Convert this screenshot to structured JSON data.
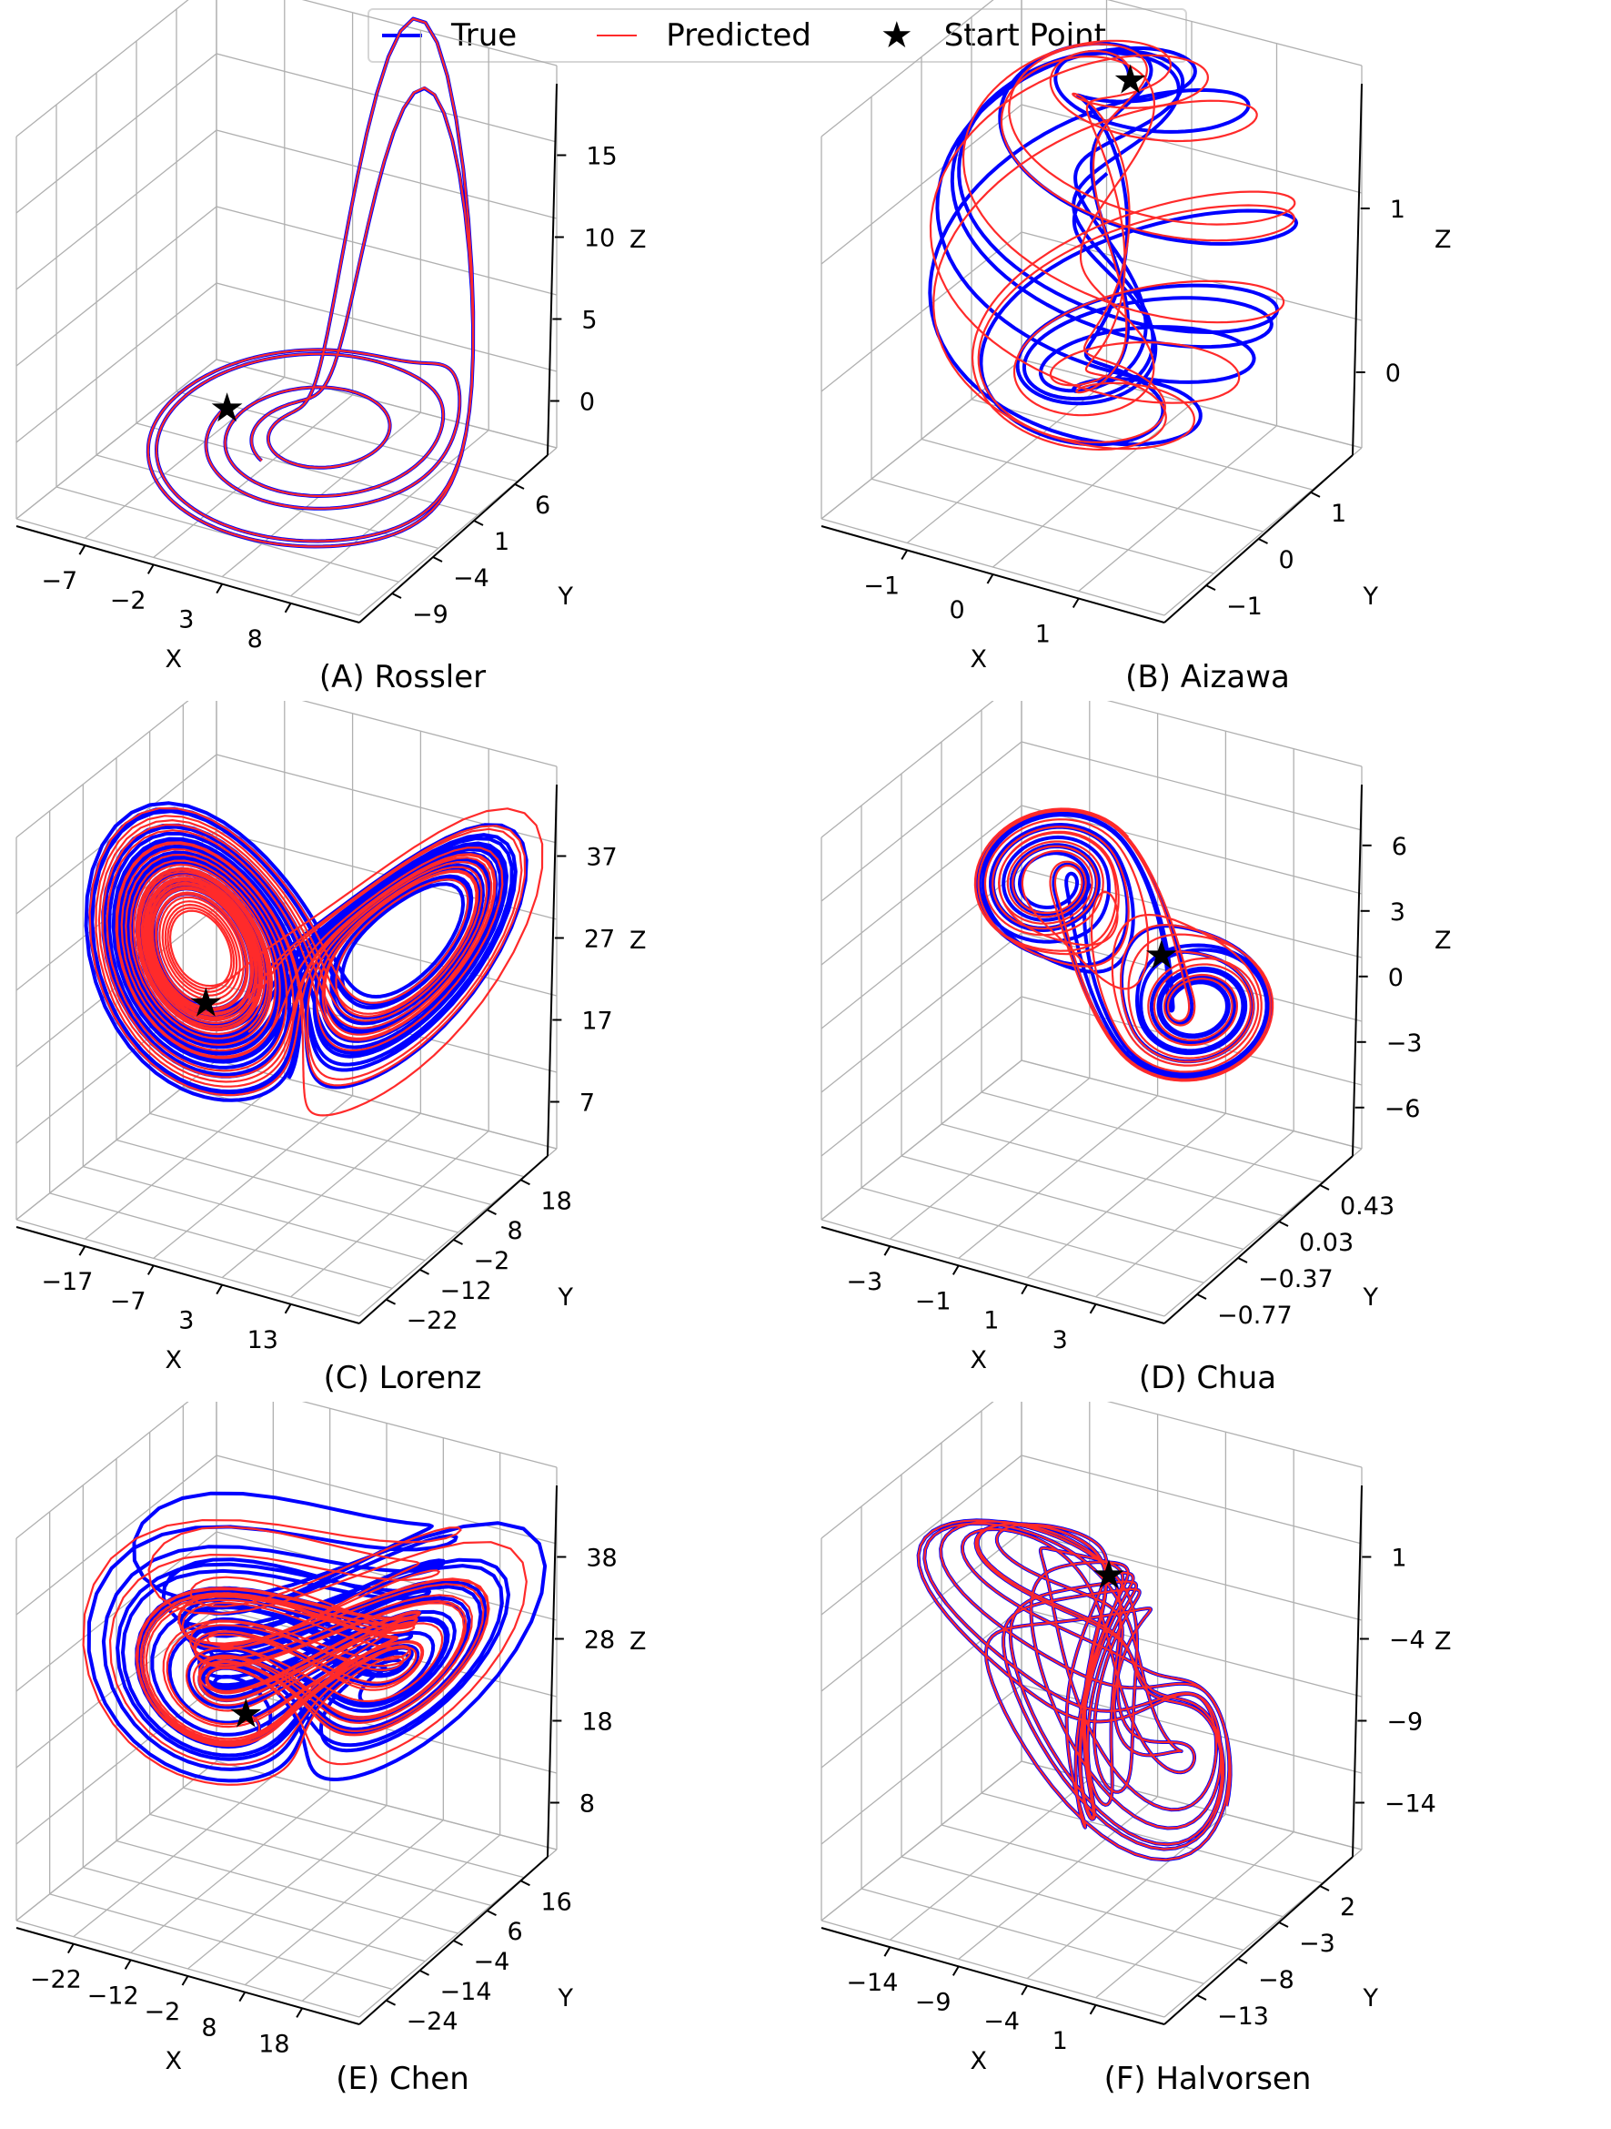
{
  "legend": {
    "entries": [
      {
        "label": "True",
        "color": "#0000ff",
        "marker": "line"
      },
      {
        "label": "Predicted",
        "color": "#ff2a2a",
        "marker": "line"
      },
      {
        "label": "Start Point",
        "color": "#000000",
        "marker": "★"
      }
    ]
  },
  "chart_data": [
    {
      "type": "line3d",
      "title": "(A) Rossler",
      "xlabel": "X",
      "ylabel": "Y",
      "zlabel": "Z",
      "x_ticks": [
        "−7",
        "−2",
        "3",
        "8"
      ],
      "y_ticks": [
        "−9",
        "−4",
        "1",
        "6"
      ],
      "z_ticks": [
        "0",
        "5",
        "10",
        "15"
      ],
      "series": [
        {
          "name": "True",
          "color": "#0000ff"
        },
        {
          "name": "Predicted",
          "color": "#ff2a2a"
        }
      ],
      "start_point": {
        "label": "Start Point"
      },
      "shape": "rossler",
      "legend_position": "top-center",
      "grid": true
    },
    {
      "type": "line3d",
      "title": "(B) Aizawa",
      "xlabel": "X",
      "ylabel": "Y",
      "zlabel": "Z",
      "x_ticks": [
        "−1",
        "0",
        "1"
      ],
      "y_ticks": [
        "−1",
        "0",
        "1"
      ],
      "z_ticks": [
        "0",
        "1"
      ],
      "series": [
        {
          "name": "True",
          "color": "#0000ff"
        },
        {
          "name": "Predicted",
          "color": "#ff2a2a"
        }
      ],
      "start_point": {
        "label": "Start Point"
      },
      "shape": "aizawa",
      "grid": true
    },
    {
      "type": "line3d",
      "title": "(C) Lorenz",
      "xlabel": "X",
      "ylabel": "Y",
      "zlabel": "Z",
      "x_ticks": [
        "−17",
        "−7",
        "3",
        "13"
      ],
      "y_ticks": [
        "−22",
        "−12",
        "−2",
        "8",
        "18"
      ],
      "z_ticks": [
        "7",
        "17",
        "27",
        "37"
      ],
      "series": [
        {
          "name": "True",
          "color": "#0000ff"
        },
        {
          "name": "Predicted",
          "color": "#ff2a2a"
        }
      ],
      "start_point": {
        "label": "Start Point"
      },
      "shape": "lorenz",
      "grid": true
    },
    {
      "type": "line3d",
      "title": "(D) Chua",
      "xlabel": "X",
      "ylabel": "Y",
      "zlabel": "Z",
      "x_ticks": [
        "−3",
        "−1",
        "1",
        "3"
      ],
      "y_ticks": [
        "−0.77",
        "−0.37",
        "0.03",
        "0.43"
      ],
      "z_ticks": [
        "−6",
        "−3",
        "0",
        "3",
        "6"
      ],
      "series": [
        {
          "name": "True",
          "color": "#0000ff"
        },
        {
          "name": "Predicted",
          "color": "#ff2a2a"
        }
      ],
      "start_point": {
        "label": "Start Point"
      },
      "shape": "chua",
      "grid": true
    },
    {
      "type": "line3d",
      "title": "(E) Chen",
      "xlabel": "X",
      "ylabel": "Y",
      "zlabel": "Z",
      "x_ticks": [
        "−22",
        "−12",
        "−2",
        "8",
        "18"
      ],
      "y_ticks": [
        "−24",
        "−14",
        "−4",
        "6",
        "16"
      ],
      "z_ticks": [
        "8",
        "18",
        "28",
        "38"
      ],
      "series": [
        {
          "name": "True",
          "color": "#0000ff"
        },
        {
          "name": "Predicted",
          "color": "#ff2a2a"
        }
      ],
      "start_point": {
        "label": "Start Point"
      },
      "shape": "chen",
      "grid": true
    },
    {
      "type": "line3d",
      "title": "(F) Halvorsen",
      "xlabel": "X",
      "ylabel": "Y",
      "zlabel": "Z",
      "x_ticks": [
        "−14",
        "−9",
        "−4",
        "1"
      ],
      "y_ticks": [
        "−13",
        "−8",
        "−3",
        "2"
      ],
      "z_ticks": [
        "−14",
        "−9",
        "−4",
        "1"
      ],
      "series": [
        {
          "name": "True",
          "color": "#0000ff"
        },
        {
          "name": "Predicted",
          "color": "#ff2a2a"
        }
      ],
      "start_point": {
        "label": "Start Point"
      },
      "shape": "halvorsen",
      "grid": true
    }
  ]
}
